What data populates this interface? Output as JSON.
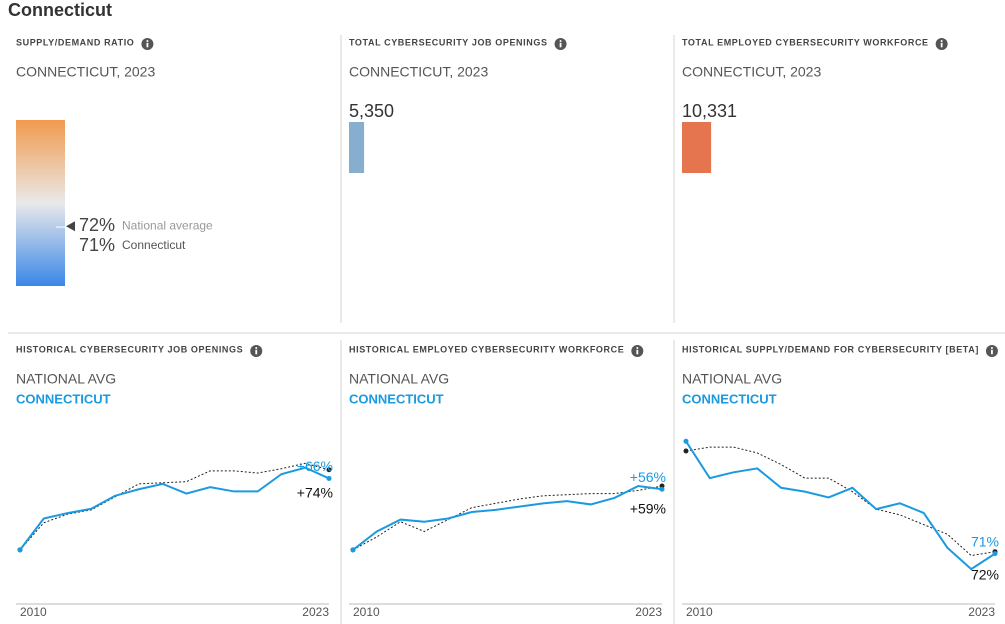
{
  "title": "Connecticut",
  "chart_data": [
    {
      "type": "gauge",
      "title": "SUPPLY/DEMAND RATIO",
      "subtitle": "CONNECTICUT, 2023",
      "categories": [
        "National average",
        "Connecticut"
      ],
      "values": [
        72,
        71
      ],
      "value_labels": [
        "72%",
        "71%"
      ],
      "ylim": [
        0,
        200
      ],
      "colors": [
        "#f19a4d",
        "#e9e9e9",
        "#3a86e8"
      ]
    },
    {
      "type": "bar",
      "orientation": "horizontal",
      "title": "TOTAL CYBERSECURITY JOB OPENINGS",
      "subtitle": "CONNECTICUT, 2023",
      "values": [
        5350
      ],
      "value_labels": [
        "5,350"
      ],
      "color": "#86aecf",
      "xlim": [
        0,
        110000
      ]
    },
    {
      "type": "bar",
      "orientation": "horizontal",
      "title": "TOTAL EMPLOYED CYBERSECURITY WORKFORCE",
      "subtitle": "CONNECTICUT, 2023",
      "values": [
        10331
      ],
      "value_labels": [
        "10,331"
      ],
      "color": "#e5754f",
      "xlim": [
        0,
        110000
      ]
    },
    {
      "type": "line",
      "title": "HISTORICAL CYBERSECURITY JOB OPENINGS",
      "x": [
        2010,
        2011,
        2012,
        2013,
        2014,
        2015,
        2016,
        2017,
        2018,
        2019,
        2020,
        2021,
        2022,
        2023
      ],
      "xlim": [
        2010,
        2023
      ],
      "xticks": [
        2010,
        2023
      ],
      "ylim": [
        -50,
        120
      ],
      "series": [
        {
          "name": "NATIONAL AVG",
          "color": "#222222",
          "values": [
            0,
            25,
            33,
            37,
            49,
            61,
            62,
            63,
            73,
            73,
            71,
            75,
            80,
            74
          ],
          "value_labels": [
            null,
            null,
            null,
            null,
            null,
            null,
            null,
            null,
            null,
            null,
            null,
            null,
            null,
            "+74%"
          ]
        },
        {
          "name": "CONNECTICUT",
          "color": "#1a9ae0",
          "values": [
            0,
            29,
            34,
            38,
            50,
            56,
            61,
            52,
            58,
            54,
            54,
            70,
            76,
            66
          ],
          "value_labels": [
            null,
            null,
            null,
            null,
            null,
            null,
            null,
            null,
            null,
            null,
            null,
            null,
            null,
            "+66%"
          ]
        }
      ]
    },
    {
      "type": "line",
      "title": "HISTORICAL EMPLOYED CYBERSECURITY WORKFORCE",
      "x": [
        2010,
        2011,
        2012,
        2013,
        2014,
        2015,
        2016,
        2017,
        2018,
        2019,
        2020,
        2021,
        2022,
        2023
      ],
      "xlim": [
        2010,
        2023
      ],
      "xticks": [
        2010,
        2023
      ],
      "ylim": [
        -50,
        120
      ],
      "series": [
        {
          "name": "NATIONAL AVG",
          "color": "#222222",
          "values": [
            0,
            12,
            26,
            17,
            28,
            39,
            43,
            47,
            50,
            51,
            52,
            52,
            55,
            59
          ],
          "value_labels": [
            null,
            null,
            null,
            null,
            null,
            null,
            null,
            null,
            null,
            null,
            null,
            null,
            null,
            "+59%"
          ]
        },
        {
          "name": "CONNECTICUT",
          "color": "#1a9ae0",
          "values": [
            0,
            17,
            28,
            26,
            29,
            35,
            37,
            40,
            43,
            45,
            42,
            48,
            59,
            56
          ],
          "value_labels": [
            null,
            null,
            null,
            null,
            null,
            null,
            null,
            null,
            null,
            null,
            null,
            null,
            null,
            "+56%"
          ]
        }
      ]
    },
    {
      "type": "line",
      "title": "HISTORICAL SUPPLY/DEMAND FOR CYBERSECURITY [BETA]",
      "x": [
        2010,
        2011,
        2012,
        2013,
        2014,
        2015,
        2016,
        2017,
        2018,
        2019,
        2020,
        2021,
        2022,
        2023
      ],
      "xlim": [
        2010,
        2023
      ],
      "xticks": [
        2010,
        2023
      ],
      "ylim": [
        45,
        140
      ],
      "series": [
        {
          "name": "NATIONAL AVG",
          "color": "#222222",
          "values": [
            124,
            126,
            126,
            123,
            117,
            110,
            110,
            103,
            94,
            91,
            86,
            81,
            70,
            72
          ],
          "value_labels": [
            null,
            null,
            null,
            null,
            null,
            null,
            null,
            null,
            null,
            null,
            null,
            null,
            null,
            "72%"
          ]
        },
        {
          "name": "CONNECTICUT",
          "color": "#1a9ae0",
          "values": [
            129,
            110,
            113,
            115,
            105,
            103,
            100,
            105,
            94,
            97,
            92,
            74,
            63,
            71
          ],
          "value_labels": [
            null,
            null,
            null,
            null,
            null,
            null,
            null,
            null,
            null,
            null,
            null,
            null,
            null,
            "71%"
          ]
        }
      ]
    }
  ]
}
